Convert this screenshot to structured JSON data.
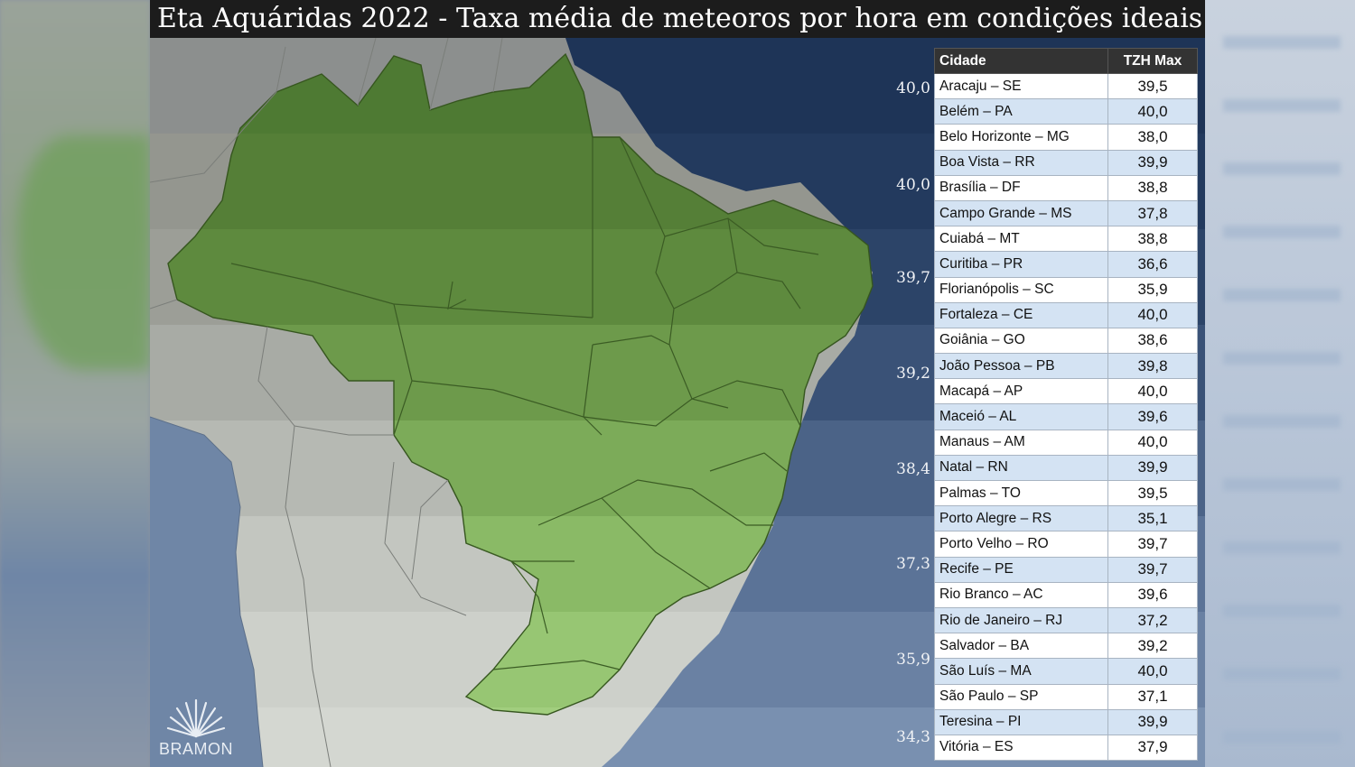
{
  "title": "Eta Aquáridas 2022 - Taxa média de meteoros por hora em condições ideais",
  "bands": [
    "40,0",
    "40,0",
    "39,7",
    "39,2",
    "38,4",
    "37,3",
    "35,9",
    "34,3"
  ],
  "logo_text": "BRAMON",
  "table": {
    "header_city": "Cidade",
    "header_value": "TZH Max",
    "rows": [
      {
        "city": "Aracaju – SE",
        "value": "39,5"
      },
      {
        "city": "Belém – PA",
        "value": "40,0"
      },
      {
        "city": "Belo Horizonte – MG",
        "value": "38,0"
      },
      {
        "city": "Boa Vista – RR",
        "value": "39,9"
      },
      {
        "city": "Brasília – DF",
        "value": "38,8"
      },
      {
        "city": "Campo Grande – MS",
        "value": "37,8"
      },
      {
        "city": "Cuiabá – MT",
        "value": "38,8"
      },
      {
        "city": "Curitiba – PR",
        "value": "36,6"
      },
      {
        "city": "Florianópolis – SC",
        "value": "35,9"
      },
      {
        "city": "Fortaleza – CE",
        "value": "40,0"
      },
      {
        "city": "Goiânia – GO",
        "value": "38,6"
      },
      {
        "city": "João Pessoa – PB",
        "value": "39,8"
      },
      {
        "city": "Macapá – AP",
        "value": "40,0"
      },
      {
        "city": "Maceió – AL",
        "value": "39,6"
      },
      {
        "city": "Manaus – AM",
        "value": "40,0"
      },
      {
        "city": "Natal – RN",
        "value": "39,9"
      },
      {
        "city": "Palmas – TO",
        "value": "39,5"
      },
      {
        "city": "Porto Alegre – RS",
        "value": "35,1"
      },
      {
        "city": "Porto Velho – RO",
        "value": "39,7"
      },
      {
        "city": "Recife – PE",
        "value": "39,7"
      },
      {
        "city": "Rio Branco – AC",
        "value": "39,6"
      },
      {
        "city": "Rio de Janeiro – RJ",
        "value": "37,2"
      },
      {
        "city": "Salvador – BA",
        "value": "39,2"
      },
      {
        "city": "São Luís – MA",
        "value": "40,0"
      },
      {
        "city": "São Paulo – SP",
        "value": "37,1"
      },
      {
        "city": "Teresina – PI",
        "value": "39,9"
      },
      {
        "city": "Vitória – ES",
        "value": "37,9"
      }
    ]
  }
}
